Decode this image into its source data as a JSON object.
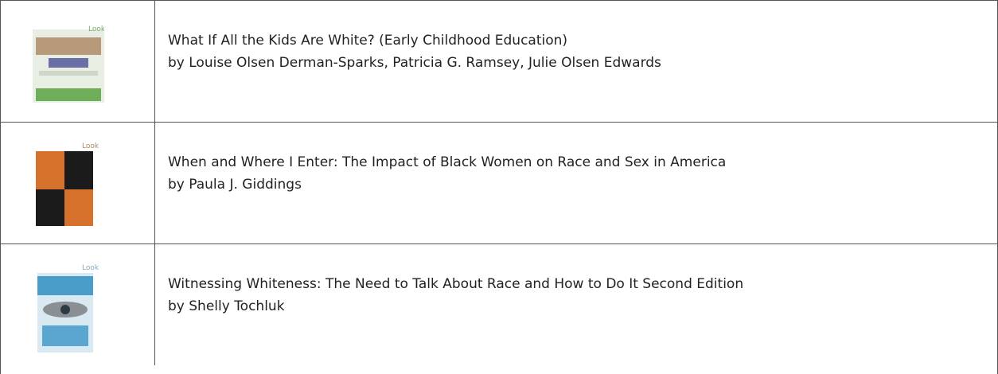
{
  "table": {
    "rows": [
      {
        "title": "What If All the Kids Are White? (Early Childhood Education)",
        "author": "by Louise Olsen Derman-Sparks, Patricia G. Ramsey, Julie Olsen Edwards"
      },
      {
        "title": "When and Where I Enter: The Impact of Black Women on Race and Sex in America",
        "author": "by Paula J. Giddings"
      },
      {
        "title": "Witnessing Whiteness: The Need to Talk About Race and How to Do It Second Edition",
        "author": "by Shelly Tochluk"
      }
    ]
  }
}
